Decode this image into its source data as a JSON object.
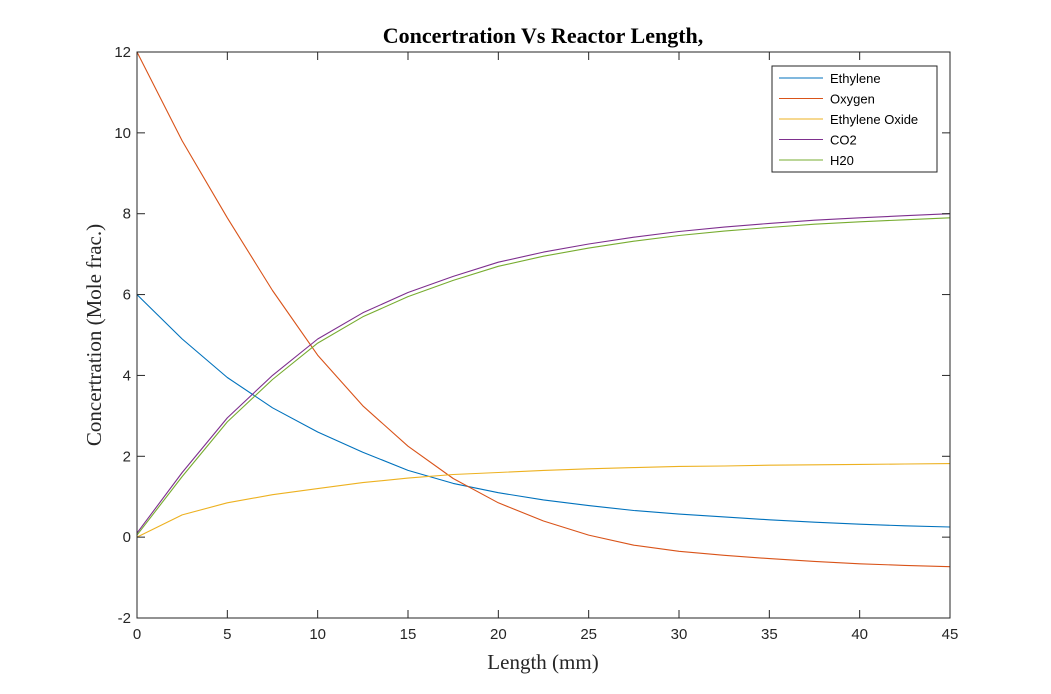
{
  "chart_data": {
    "type": "line",
    "title": "Concertration Vs Reactor Length,",
    "xlabel": "Length (mm)",
    "ylabel": "Concertration (Mole frac.)",
    "xlim": [
      0,
      45
    ],
    "ylim": [
      -2,
      12
    ],
    "xticks": [
      0,
      5,
      10,
      15,
      20,
      25,
      30,
      35,
      40,
      45
    ],
    "yticks": [
      -2,
      0,
      2,
      4,
      6,
      8,
      10,
      12
    ],
    "grid": false,
    "legend_position": "top-right",
    "x": [
      0,
      2.5,
      5,
      7.5,
      10,
      12.5,
      15,
      17.5,
      20,
      22.5,
      25,
      27.5,
      30,
      32.5,
      35,
      37.5,
      40,
      42.5,
      45
    ],
    "series": [
      {
        "name": "Ethylene",
        "color": "#0072bd",
        "values": [
          6.0,
          4.9,
          3.95,
          3.2,
          2.6,
          2.1,
          1.65,
          1.33,
          1.1,
          0.92,
          0.78,
          0.66,
          0.57,
          0.5,
          0.43,
          0.37,
          0.32,
          0.28,
          0.25
        ]
      },
      {
        "name": "Oxygen",
        "color": "#d95319",
        "values": [
          12.0,
          9.8,
          7.9,
          6.1,
          4.5,
          3.25,
          2.25,
          1.45,
          0.85,
          0.4,
          0.05,
          -0.2,
          -0.35,
          -0.45,
          -0.53,
          -0.6,
          -0.66,
          -0.7,
          -0.73
        ]
      },
      {
        "name": "Ethylene Oxide",
        "color": "#edb120",
        "values": [
          0.0,
          0.55,
          0.85,
          1.05,
          1.2,
          1.35,
          1.46,
          1.55,
          1.6,
          1.65,
          1.69,
          1.72,
          1.75,
          1.76,
          1.78,
          1.79,
          1.8,
          1.81,
          1.82
        ]
      },
      {
        "name": "CO2",
        "color": "#7e2f8e",
        "values": [
          0.1,
          1.6,
          2.95,
          4.0,
          4.9,
          5.55,
          6.05,
          6.45,
          6.8,
          7.05,
          7.25,
          7.42,
          7.56,
          7.67,
          7.76,
          7.84,
          7.9,
          7.95,
          8.0
        ]
      },
      {
        "name": "H20",
        "color": "#77ac30",
        "values": [
          0.05,
          1.5,
          2.85,
          3.9,
          4.8,
          5.45,
          5.95,
          6.35,
          6.7,
          6.95,
          7.15,
          7.32,
          7.46,
          7.57,
          7.66,
          7.74,
          7.8,
          7.85,
          7.9
        ]
      }
    ]
  }
}
